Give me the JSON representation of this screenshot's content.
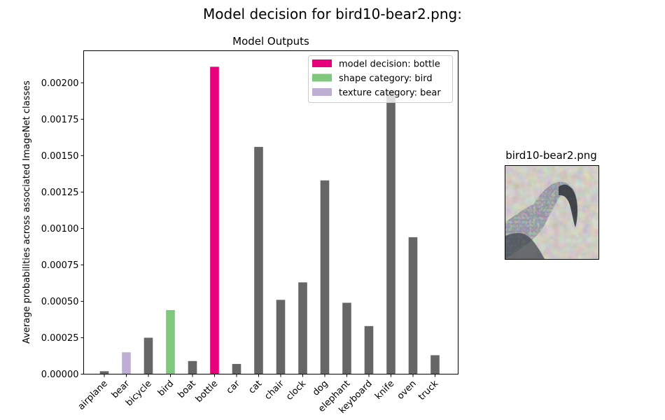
{
  "figure": {
    "suptitle": "Model decision for bird10-bear2.png:",
    "image_title": "bird10-bear2.png"
  },
  "chart_data": {
    "type": "bar",
    "title": "Model Outputs",
    "xlabel": "",
    "ylabel": "Average probabilities across associated ImageNet classes",
    "categories": [
      "airplane",
      "bear",
      "bicycle",
      "bird",
      "boat",
      "bottle",
      "car",
      "cat",
      "chair",
      "clock",
      "dog",
      "elephant",
      "keyboard",
      "knife",
      "oven",
      "truck"
    ],
    "values": [
      2e-05,
      0.00015,
      0.00025,
      0.00044,
      9e-05,
      0.00211,
      7e-05,
      0.00156,
      0.00051,
      0.00063,
      0.00133,
      0.00049,
      0.00033,
      0.00195,
      0.00094,
      0.00013
    ],
    "bar_roles": [
      "other",
      "texture",
      "other",
      "shape",
      "other",
      "decision",
      "other",
      "other",
      "other",
      "other",
      "other",
      "other",
      "other",
      "other",
      "other",
      "other"
    ],
    "ylim": [
      0,
      0.00222
    ],
    "yticks": [
      "0.00000",
      "0.00025",
      "0.00050",
      "0.00075",
      "0.00100",
      "0.00125",
      "0.00150",
      "0.00175",
      "0.00200"
    ],
    "colors": {
      "decision": "#e7007a",
      "shape": "#7fc97f",
      "texture": "#beaed4",
      "other": "#666666"
    },
    "legend": {
      "position": "top-right",
      "entries": [
        {
          "role": "decision",
          "label": "model decision: bottle"
        },
        {
          "role": "shape",
          "label": "shape category: bird"
        },
        {
          "role": "texture",
          "label": "texture category: bear"
        }
      ]
    },
    "grid": false
  }
}
